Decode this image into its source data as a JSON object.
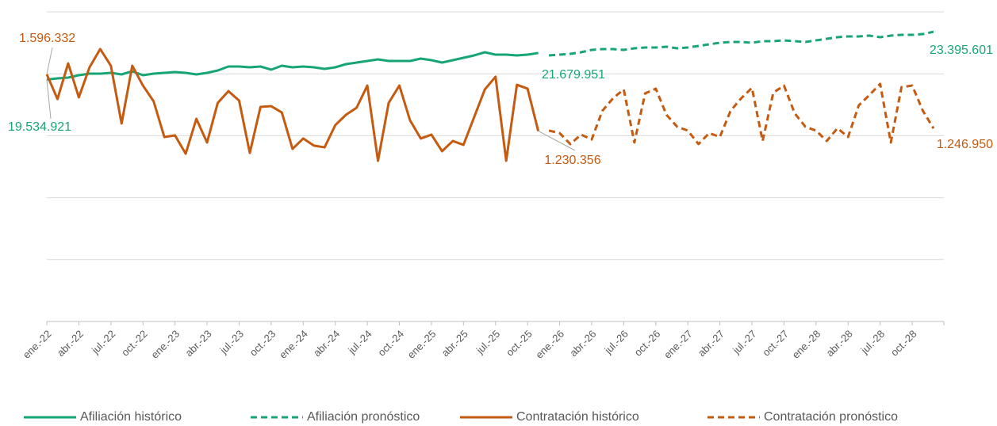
{
  "chart_data": {
    "type": "line",
    "categories": [
      "ene.-22",
      null,
      null,
      "abr.-22",
      null,
      null,
      "jul.-22",
      null,
      null,
      "oct.-22",
      null,
      null,
      "ene.-23",
      null,
      null,
      "abr.-23",
      null,
      null,
      "jul.-23",
      null,
      null,
      "oct.-23",
      null,
      null,
      "ene.-24",
      null,
      null,
      "abr.-24",
      null,
      null,
      "jul.-24",
      null,
      null,
      "oct.-24",
      null,
      null,
      "ene.-25",
      null,
      null,
      "abr.-25",
      null,
      null,
      "jul.-25",
      null,
      null,
      "oct.-25",
      null,
      null,
      "ene.-26",
      null,
      null,
      "abr.-26",
      null,
      null,
      "jul.-26",
      null,
      null,
      "oct.-26",
      null,
      null,
      "ene.-27",
      null,
      null,
      "abr.-27",
      null,
      null,
      "jul.-27",
      null,
      null,
      "oct.-27",
      null,
      null,
      "ene.-28",
      null,
      null,
      "abr.-28",
      null,
      null,
      "jul.-28",
      null,
      null,
      "oct.-28",
      null,
      null
    ],
    "ylim": [
      0,
      25000000
    ],
    "yticks": [
      0,
      5000000,
      10000000,
      15000000,
      20000000,
      25000000
    ],
    "y2lim": [
      0,
      2000000
    ],
    "grid": true,
    "legend": "bottom",
    "series": [
      {
        "name": "Afiliación histórico",
        "color": "#17a673",
        "line_style": "solid",
        "values": [
          19534921,
          19629000,
          19693000,
          19885000,
          20013000,
          20013000,
          20077000,
          19949000,
          20205000,
          19885000,
          20013000,
          20077000,
          20141000,
          20077000,
          19949000,
          20077000,
          20269000,
          20588000,
          20588000,
          20524000,
          20588000,
          20333000,
          20652000,
          20524000,
          20588000,
          20524000,
          20397000,
          20524000,
          20780000,
          20908000,
          21036000,
          21164000,
          21036000,
          21036000,
          21036000,
          21228000,
          21100000,
          20908000,
          21100000,
          21292000,
          21484000,
          21739000,
          21547000,
          21547000,
          21484000,
          21547000,
          21679951,
          null,
          null,
          null,
          null,
          null,
          null,
          null,
          null,
          null,
          null,
          null,
          null,
          null,
          null,
          null,
          null,
          null,
          null,
          null,
          null,
          null,
          null,
          null,
          null,
          null,
          null,
          null,
          null,
          null,
          null,
          null,
          null,
          null,
          null,
          null,
          null,
          null
        ],
        "value_labels": [
          "19.534.921",
          null,
          null,
          null,
          null,
          null,
          null,
          null,
          null,
          null,
          null,
          null,
          null,
          null,
          null,
          null,
          null,
          null,
          null,
          null,
          null,
          null,
          null,
          null,
          null,
          null,
          null,
          null,
          null,
          null,
          null,
          null,
          null,
          null,
          null,
          null,
          null,
          null,
          null,
          null,
          null,
          null,
          null,
          null,
          null,
          null,
          "21.679.951",
          null,
          null,
          null,
          null,
          null,
          null,
          null,
          null,
          null,
          null,
          null,
          null,
          null,
          null,
          null,
          null,
          null,
          null,
          null,
          null,
          null,
          null,
          null,
          null,
          null,
          null,
          null,
          null,
          null,
          null,
          null,
          null,
          null,
          null,
          null,
          null,
          null
        ]
      },
      {
        "name": "Afiliación pronóstico",
        "color": "#17a673",
        "line_style": "dashed",
        "values": [
          null,
          null,
          null,
          null,
          null,
          null,
          null,
          null,
          null,
          null,
          null,
          null,
          null,
          null,
          null,
          null,
          null,
          null,
          null,
          null,
          null,
          null,
          null,
          null,
          null,
          null,
          null,
          null,
          null,
          null,
          null,
          null,
          null,
          null,
          null,
          null,
          null,
          null,
          null,
          null,
          null,
          null,
          null,
          null,
          null,
          null,
          null,
          21484000,
          21547000,
          21611000,
          21739000,
          21931000,
          21995000,
          21995000,
          21931000,
          22059000,
          22123000,
          22123000,
          22187000,
          22059000,
          22123000,
          22251000,
          22379000,
          22507000,
          22570000,
          22570000,
          22507000,
          22634000,
          22634000,
          22698000,
          22634000,
          22570000,
          22698000,
          22826000,
          22954000,
          23018000,
          23018000,
          23082000,
          22954000,
          23082000,
          23146000,
          23146000,
          23210000,
          23395601
        ],
        "value_labels": [
          null,
          null,
          null,
          null,
          null,
          null,
          null,
          null,
          null,
          null,
          null,
          null,
          null,
          null,
          null,
          null,
          null,
          null,
          null,
          null,
          null,
          null,
          null,
          null,
          null,
          null,
          null,
          null,
          null,
          null,
          null,
          null,
          null,
          null,
          null,
          null,
          null,
          null,
          null,
          null,
          null,
          null,
          null,
          null,
          null,
          null,
          null,
          null,
          null,
          null,
          null,
          null,
          null,
          null,
          null,
          null,
          null,
          null,
          null,
          null,
          null,
          null,
          null,
          null,
          null,
          null,
          null,
          null,
          null,
          null,
          null,
          null,
          null,
          null,
          null,
          null,
          null,
          null,
          null,
          null,
          null,
          null,
          null,
          "23.395.601"
        ]
      },
      {
        "name": "Contratación histórico",
        "color": "#c55a11",
        "line_style": "solid",
        "axis": "y2",
        "values": [
          1596332,
          1437000,
          1667000,
          1448000,
          1642000,
          1760000,
          1652000,
          1279000,
          1652000,
          1524000,
          1422000,
          1192000,
          1202000,
          1084000,
          1309000,
          1156000,
          1412000,
          1488000,
          1427000,
          1089000,
          1386000,
          1391000,
          1350000,
          1115000,
          1182000,
          1136000,
          1125000,
          1268000,
          1335000,
          1381000,
          1524000,
          1038000,
          1412000,
          1524000,
          1299000,
          1182000,
          1207000,
          1100000,
          1166000,
          1141000,
          1320000,
          1499000,
          1581000,
          1038000,
          1529000,
          1504000,
          1230356,
          null,
          null,
          null,
          null,
          null,
          null,
          null,
          null,
          null,
          null,
          null,
          null,
          null,
          null,
          null,
          null,
          null,
          null,
          null,
          null,
          null,
          null,
          null,
          null,
          null,
          null,
          null,
          null,
          null,
          null,
          null,
          null,
          null,
          null,
          null,
          null,
          null
        ],
        "value_labels": [
          "1.596.332",
          null,
          null,
          null,
          null,
          null,
          null,
          null,
          null,
          null,
          null,
          null,
          null,
          null,
          null,
          null,
          null,
          null,
          null,
          null,
          null,
          null,
          null,
          null,
          null,
          null,
          null,
          null,
          null,
          null,
          null,
          null,
          null,
          null,
          null,
          null,
          null,
          null,
          null,
          null,
          null,
          null,
          null,
          null,
          null,
          null,
          "1.230.356",
          null,
          null,
          null,
          null,
          null,
          null,
          null,
          null,
          null,
          null,
          null,
          null,
          null,
          null,
          null,
          null,
          null,
          null,
          null,
          null,
          null,
          null,
          null,
          null,
          null,
          null,
          null,
          null,
          null,
          null,
          null,
          null,
          null,
          null,
          null,
          null,
          null
        ]
      },
      {
        "name": "Contratación pronóstico",
        "color": "#c55a11",
        "line_style": "dashed",
        "axis": "y2",
        "values": [
          null,
          null,
          null,
          null,
          null,
          null,
          null,
          null,
          null,
          null,
          null,
          null,
          null,
          null,
          null,
          null,
          null,
          null,
          null,
          null,
          null,
          null,
          null,
          null,
          null,
          null,
          null,
          null,
          null,
          null,
          null,
          null,
          null,
          null,
          null,
          null,
          null,
          null,
          null,
          null,
          null,
          null,
          null,
          null,
          null,
          null,
          null,
          1233000,
          1217000,
          1146000,
          1207000,
          1176000,
          1361000,
          1442000,
          1499000,
          1156000,
          1473000,
          1504000,
          1335000,
          1258000,
          1233000,
          1146000,
          1217000,
          1192000,
          1361000,
          1442000,
          1509000,
          1166000,
          1478000,
          1524000,
          1345000,
          1258000,
          1233000,
          1166000,
          1248000,
          1192000,
          1396000,
          1463000,
          1535000,
          1156000,
          1514000,
          1524000,
          1361000,
          1246950
        ],
        "value_labels": [
          null,
          null,
          null,
          null,
          null,
          null,
          null,
          null,
          null,
          null,
          null,
          null,
          null,
          null,
          null,
          null,
          null,
          null,
          null,
          null,
          null,
          null,
          null,
          null,
          null,
          null,
          null,
          null,
          null,
          null,
          null,
          null,
          null,
          null,
          null,
          null,
          null,
          null,
          null,
          null,
          null,
          null,
          null,
          null,
          null,
          null,
          null,
          null,
          null,
          null,
          null,
          null,
          null,
          null,
          null,
          null,
          null,
          null,
          null,
          null,
          null,
          null,
          null,
          null,
          null,
          null,
          null,
          null,
          null,
          null,
          null,
          null,
          null,
          null,
          null,
          null,
          null,
          null,
          null,
          null,
          null,
          null,
          null,
          "1.246.950"
        ]
      }
    ]
  }
}
